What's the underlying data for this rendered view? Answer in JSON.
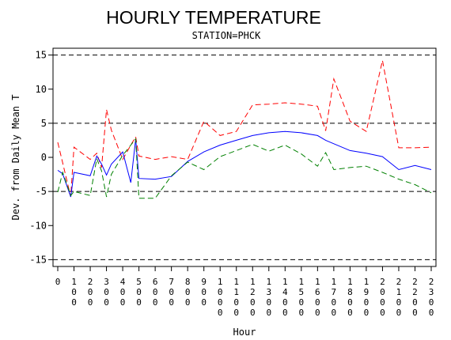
{
  "chart_data": {
    "type": "line",
    "title": "HOURLY TEMPERATURE",
    "subtitle": "STATION=PHCK",
    "xlabel": "Hour",
    "ylabel": "Dev. from Daily Mean T",
    "xlim": [
      0,
      2300
    ],
    "ylim": [
      -16,
      16
    ],
    "y_ticks": [
      -15,
      -10,
      -5,
      0,
      5,
      10,
      15
    ],
    "y_tick_labels": [
      "-15",
      "-10",
      "-5",
      "0",
      "5",
      "10",
      "15"
    ],
    "x_ticks": [
      0,
      100,
      200,
      300,
      400,
      500,
      600,
      700,
      800,
      900,
      1000,
      1100,
      1200,
      1300,
      1400,
      1500,
      1600,
      1700,
      1800,
      1900,
      2000,
      2100,
      2200,
      2300
    ],
    "x_tick_labels": [
      "0",
      "100",
      "200",
      "300",
      "400",
      "500",
      "600",
      "700",
      "800",
      "900",
      "1000",
      "1100",
      "1200",
      "1300",
      "1400",
      "1500",
      "1600",
      "1700",
      "1800",
      "1900",
      "2000",
      "2100",
      "2200",
      "2300"
    ],
    "reference_lines": [
      -15,
      -5,
      5,
      15
    ],
    "grid": false,
    "legend": "none",
    "series": [
      {
        "style": "dashed",
        "color": "#ff0000",
        "x": [
          0,
          30,
          80,
          100,
          200,
          240,
          270,
          300,
          330,
          400,
          450,
          480,
          500,
          600,
          700,
          800,
          900,
          1000,
          1100,
          1200,
          1300,
          1400,
          1500,
          1600,
          1650,
          1700,
          1800,
          1900,
          2000,
          2100,
          2200,
          2300
        ],
        "y": [
          2.2,
          -0.8,
          -5.8,
          1.5,
          -0.3,
          0.6,
          -1.5,
          7.0,
          4.0,
          -0.3,
          1.8,
          3.0,
          0.2,
          -0.3,
          0.1,
          -0.3,
          5.3,
          3.2,
          3.8,
          7.7,
          7.8,
          8.0,
          7.8,
          7.5,
          3.9,
          11.5,
          5.3,
          3.8,
          14.2,
          1.4,
          1.4,
          1.5
        ]
      },
      {
        "style": "solid",
        "color": "#0000ff",
        "x": [
          0,
          30,
          80,
          100,
          200,
          240,
          270,
          300,
          330,
          400,
          450,
          480,
          500,
          600,
          700,
          800,
          900,
          1000,
          1100,
          1200,
          1300,
          1400,
          1500,
          1600,
          1650,
          1700,
          1800,
          1900,
          2000,
          2100,
          2200,
          2300
        ],
        "y": [
          -1.9,
          -2.4,
          -5.8,
          -2.2,
          -2.7,
          0.2,
          -1.0,
          -2.6,
          -1.0,
          0.8,
          -3.7,
          2.7,
          -3.1,
          -3.2,
          -2.8,
          -0.6,
          0.8,
          1.8,
          2.5,
          3.2,
          3.6,
          3.8,
          3.6,
          3.2,
          2.5,
          2.0,
          1.0,
          0.6,
          0.1,
          -1.8,
          -1.2,
          -1.8
        ]
      },
      {
        "style": "dashed",
        "color": "#008000",
        "x": [
          0,
          30,
          80,
          100,
          200,
          240,
          270,
          300,
          330,
          400,
          450,
          480,
          500,
          600,
          700,
          800,
          900,
          1000,
          1100,
          1200,
          1300,
          1400,
          1500,
          1600,
          1650,
          1700,
          1800,
          1900,
          2000,
          2100,
          2200,
          2300
        ],
        "y": [
          -5.1,
          -2.2,
          -5.6,
          -5.0,
          -5.6,
          -0.2,
          -2.0,
          -5.8,
          -2.5,
          0.3,
          1.8,
          2.7,
          -6.0,
          -6.0,
          -2.7,
          -0.7,
          -1.8,
          0.1,
          1.0,
          1.9,
          0.9,
          1.8,
          0.5,
          -1.3,
          0.7,
          -1.8,
          -1.5,
          -1.3,
          -2.2,
          -3.2,
          -4.0,
          -5.2
        ]
      }
    ]
  }
}
